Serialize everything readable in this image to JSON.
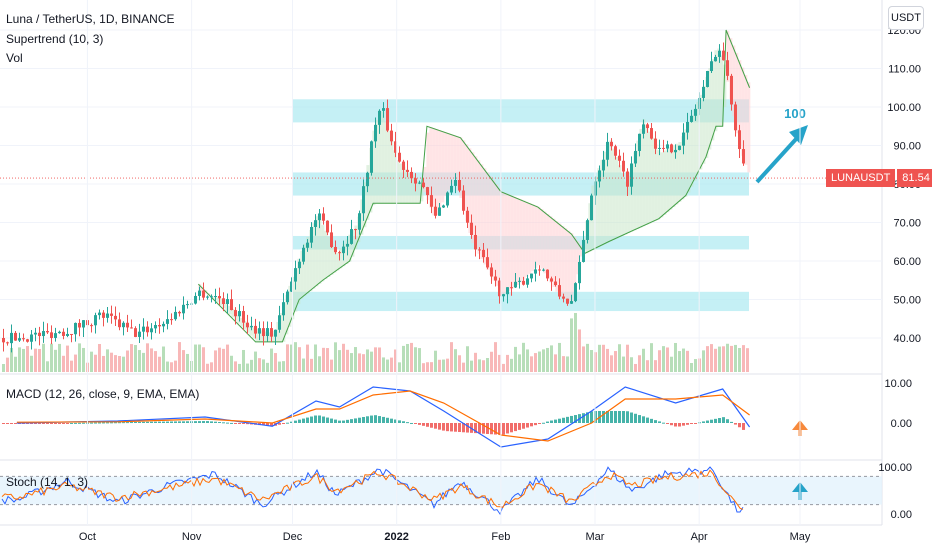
{
  "header": {
    "symbol_line": "Luna / TetherUS, 1D, BINANCE",
    "indicator_1": "Supertrend (10, 3)",
    "indicator_2": "Vol",
    "currency_badge": "USDT",
    "macd_label": "MACD (12, 26, close, 9, EMA, EMA)",
    "stoch_label": "Stoch (14, 1, 3)"
  },
  "price_tag": {
    "symbol": "LUNAUSDT",
    "value": "81.54",
    "color": "#ef5350"
  },
  "annotation": {
    "target_label": "100",
    "color": "#26a3c9"
  },
  "colors": {
    "up": "#26a69a",
    "down": "#ef5350",
    "zone": "#b2ebf2",
    "macd": "#2962ff",
    "signal": "#ff6d00",
    "arrow_orange": "#f7893b",
    "arrow_teal": "#26a3c9"
  },
  "chart_data": [
    {
      "type": "candlestick",
      "title": "Luna / TetherUS, 1D, BINANCE",
      "x_ticks": [
        "Oct",
        "Nov",
        "Dec",
        "2022",
        "Feb",
        "Mar",
        "Apr",
        "May"
      ],
      "y_ticks": [
        "40.00",
        "50.00",
        "60.00",
        "70.00",
        "80.00",
        "90.00",
        "100.00",
        "110.00",
        "120.00"
      ],
      "ylim": [
        30,
        121
      ],
      "last_price": 81.54,
      "support_resistance_zones": [
        [
          47,
          52
        ],
        [
          63,
          66.5
        ],
        [
          77,
          83
        ],
        [
          96,
          102
        ]
      ],
      "close_path": [
        {
          "x": "2021-09-10",
          "y": 40
        },
        {
          "x": "2021-09-25",
          "y": 42
        },
        {
          "x": "2021-10-05",
          "y": 46
        },
        {
          "x": "2021-10-15",
          "y": 41
        },
        {
          "x": "2021-10-25",
          "y": 45
        },
        {
          "x": "2021-11-03",
          "y": 52
        },
        {
          "x": "2021-11-10",
          "y": 50
        },
        {
          "x": "2021-11-18",
          "y": 43
        },
        {
          "x": "2021-11-25",
          "y": 41
        },
        {
          "x": "2021-12-03",
          "y": 62
        },
        {
          "x": "2021-12-08",
          "y": 72
        },
        {
          "x": "2021-12-14",
          "y": 62
        },
        {
          "x": "2021-12-20",
          "y": 70
        },
        {
          "x": "2021-12-25",
          "y": 95
        },
        {
          "x": "2021-12-27",
          "y": 100
        },
        {
          "x": "2022-01-01",
          "y": 86
        },
        {
          "x": "2022-01-08",
          "y": 80
        },
        {
          "x": "2022-01-12",
          "y": 71
        },
        {
          "x": "2022-01-18",
          "y": 82
        },
        {
          "x": "2022-01-23",
          "y": 65
        },
        {
          "x": "2022-02-01",
          "y": 51
        },
        {
          "x": "2022-02-06",
          "y": 54
        },
        {
          "x": "2022-02-12",
          "y": 59
        },
        {
          "x": "2022-02-18",
          "y": 51
        },
        {
          "x": "2022-02-22",
          "y": 49
        },
        {
          "x": "2022-02-28",
          "y": 80
        },
        {
          "x": "2022-03-05",
          "y": 92
        },
        {
          "x": "2022-03-10",
          "y": 80
        },
        {
          "x": "2022-03-15",
          "y": 97
        },
        {
          "x": "2022-03-20",
          "y": 88
        },
        {
          "x": "2022-03-26",
          "y": 91
        },
        {
          "x": "2022-04-01",
          "y": 103
        },
        {
          "x": "2022-04-06",
          "y": 116
        },
        {
          "x": "2022-04-08",
          "y": 112
        },
        {
          "x": "2022-04-12",
          "y": 92
        },
        {
          "x": "2022-04-14",
          "y": 86
        },
        {
          "x": "2022-04-16",
          "y": 81.54
        }
      ],
      "supertrend": [
        {
          "x": "2021-11-03",
          "y": 54
        },
        {
          "x": "2021-11-20",
          "y": 39
        },
        {
          "x": "2021-11-28",
          "y": 39
        },
        {
          "x": "2021-12-03",
          "y": 50
        },
        {
          "x": "2021-12-10",
          "y": 55
        },
        {
          "x": "2021-12-18",
          "y": 60
        },
        {
          "x": "2021-12-25",
          "y": 75
        },
        {
          "x": "2022-01-08",
          "y": 75
        },
        {
          "x": "2022-01-10",
          "y": 95
        },
        {
          "x": "2022-01-20",
          "y": 92
        },
        {
          "x": "2022-02-01",
          "y": 78
        },
        {
          "x": "2022-02-12",
          "y": 74
        },
        {
          "x": "2022-02-22",
          "y": 67
        },
        {
          "x": "2022-02-26",
          "y": 62
        },
        {
          "x": "2022-03-05",
          "y": 65
        },
        {
          "x": "2022-03-20",
          "y": 71
        },
        {
          "x": "2022-03-28",
          "y": 77
        },
        {
          "x": "2022-04-03",
          "y": 87
        },
        {
          "x": "2022-04-06",
          "y": 95
        },
        {
          "x": "2022-04-08",
          "y": 95
        },
        {
          "x": "2022-04-09",
          "y": 120
        },
        {
          "x": "2022-04-16",
          "y": 105
        }
      ]
    },
    {
      "type": "line",
      "title": "MACD (12, 26, close, 9, EMA, EMA)",
      "y_ticks": [
        "10.00",
        "0.00"
      ],
      "ylim": [
        -8,
        11
      ],
      "series": [
        {
          "values": [
            {
              "x": "2021-09-10",
              "y": 0
            },
            {
              "x": "2021-10-10",
              "y": 0.5
            },
            {
              "x": "2021-11-05",
              "y": 1.5
            },
            {
              "x": "2021-11-25",
              "y": -0.8
            },
            {
              "x": "2021-12-08",
              "y": 5.5
            },
            {
              "x": "2021-12-15",
              "y": 4
            },
            {
              "x": "2021-12-25",
              "y": 9
            },
            {
              "x": "2022-01-05",
              "y": 8
            },
            {
              "x": "2022-01-15",
              "y": 3
            },
            {
              "x": "2022-02-01",
              "y": -6
            },
            {
              "x": "2022-02-15",
              "y": -4
            },
            {
              "x": "2022-02-28",
              "y": 3
            },
            {
              "x": "2022-03-10",
              "y": 9
            },
            {
              "x": "2022-03-25",
              "y": 5
            },
            {
              "x": "2022-04-08",
              "y": 8.5
            },
            {
              "x": "2022-04-16",
              "y": -1
            }
          ]
        },
        {
          "values": [
            {
              "x": "2021-09-10",
              "y": 0.2
            },
            {
              "x": "2021-10-10",
              "y": 0.3
            },
            {
              "x": "2021-11-05",
              "y": 1
            },
            {
              "x": "2021-11-25",
              "y": 0
            },
            {
              "x": "2021-12-08",
              "y": 3.5
            },
            {
              "x": "2021-12-15",
              "y": 3.5
            },
            {
              "x": "2021-12-25",
              "y": 7
            },
            {
              "x": "2022-01-05",
              "y": 8
            },
            {
              "x": "2022-01-15",
              "y": 5
            },
            {
              "x": "2022-02-01",
              "y": -3
            },
            {
              "x": "2022-02-15",
              "y": -4.5
            },
            {
              "x": "2022-02-28",
              "y": 0
            },
            {
              "x": "2022-03-10",
              "y": 6
            },
            {
              "x": "2022-03-25",
              "y": 6
            },
            {
              "x": "2022-04-08",
              "y": 7
            },
            {
              "x": "2022-04-16",
              "y": 2
            }
          ]
        }
      ]
    },
    {
      "type": "line",
      "title": "Stoch (14, 1, 3)",
      "y_ticks": [
        "100.00",
        "0.00"
      ],
      "ylim": [
        -5,
        105
      ],
      "series": [
        {
          "values": [
            {
              "x": "2021-09-10",
              "y": 30
            },
            {
              "x": "2021-09-25",
              "y": 70
            },
            {
              "x": "2021-10-10",
              "y": 25
            },
            {
              "x": "2021-10-25",
              "y": 60
            },
            {
              "x": "2021-11-08",
              "y": 85
            },
            {
              "x": "2021-11-22",
              "y": 20
            },
            {
              "x": "2021-12-08",
              "y": 90
            },
            {
              "x": "2021-12-14",
              "y": 40
            },
            {
              "x": "2021-12-27",
              "y": 95
            },
            {
              "x": "2022-01-12",
              "y": 20
            },
            {
              "x": "2022-01-20",
              "y": 70
            },
            {
              "x": "2022-02-01",
              "y": 5
            },
            {
              "x": "2022-02-12",
              "y": 75
            },
            {
              "x": "2022-02-22",
              "y": 15
            },
            {
              "x": "2022-03-05",
              "y": 95
            },
            {
              "x": "2022-03-12",
              "y": 50
            },
            {
              "x": "2022-03-22",
              "y": 85
            },
            {
              "x": "2022-04-05",
              "y": 95
            },
            {
              "x": "2022-04-12",
              "y": 10
            },
            {
              "x": "2022-04-16",
              "y": 5
            }
          ]
        },
        {
          "values": [
            {
              "x": "2021-09-10",
              "y": 35
            },
            {
              "x": "2021-09-25",
              "y": 60
            },
            {
              "x": "2021-10-10",
              "y": 35
            },
            {
              "x": "2021-10-25",
              "y": 55
            },
            {
              "x": "2021-11-08",
              "y": 75
            },
            {
              "x": "2021-11-22",
              "y": 30
            },
            {
              "x": "2021-12-08",
              "y": 80
            },
            {
              "x": "2021-12-14",
              "y": 50
            },
            {
              "x": "2021-12-27",
              "y": 88
            },
            {
              "x": "2022-01-12",
              "y": 30
            },
            {
              "x": "2022-01-20",
              "y": 60
            },
            {
              "x": "2022-02-01",
              "y": 15
            },
            {
              "x": "2022-02-12",
              "y": 65
            },
            {
              "x": "2022-02-22",
              "y": 25
            },
            {
              "x": "2022-03-05",
              "y": 85
            },
            {
              "x": "2022-03-12",
              "y": 60
            },
            {
              "x": "2022-03-22",
              "y": 78
            },
            {
              "x": "2022-04-05",
              "y": 88
            },
            {
              "x": "2022-04-12",
              "y": 20
            },
            {
              "x": "2022-04-16",
              "y": 8
            }
          ]
        }
      ]
    }
  ]
}
